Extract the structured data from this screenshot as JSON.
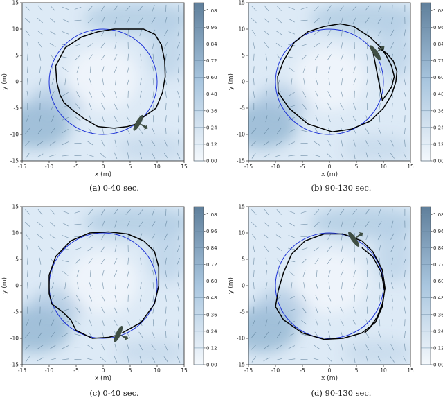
{
  "chart_data": [
    {
      "type": "line",
      "caption": "(a) 0-40 sec.",
      "xlabel": "x (m)",
      "ylabel": "y (m)",
      "xlim": [
        -15,
        15
      ],
      "ylim": [
        -15,
        15
      ],
      "xticks": [
        "-15",
        "-10",
        "-5",
        "0",
        "5",
        "10",
        "15"
      ],
      "yticks": [
        "-15",
        "-10",
        "-5",
        "0",
        "5",
        "10",
        "15"
      ],
      "colorbar_ticks": [
        "0.00",
        "0.12",
        "0.24",
        "0.36",
        "0.48",
        "0.60",
        "0.72",
        "0.84",
        "0.96",
        "1.08"
      ],
      "series": [
        {
          "color": "#1a2fd6",
          "circle": {
            "cx": 0,
            "cy": 0,
            "r": 10
          }
        },
        {
          "color": "#000000",
          "x": [
            7.0,
            9.8,
            11.0,
            11.5,
            11.4,
            10.8,
            9.6,
            7.5,
            4.8,
            2.0,
            -1.0,
            -4.0,
            -7.0,
            -8.8,
            -8.6,
            -8.0,
            -7.2,
            -5.5,
            -3.5,
            -1.0,
            2.0,
            4.5,
            6.2
          ],
          "y": [
            -7.0,
            -5.0,
            -2.0,
            1.0,
            4.0,
            7.0,
            9.0,
            10.0,
            10.0,
            10.0,
            9.5,
            8.5,
            6.5,
            3.0,
            0.0,
            -2.5,
            -4.0,
            -5.5,
            -7.0,
            -8.5,
            -8.8,
            -8.5,
            -8.0
          ]
        }
      ],
      "aircraft": {
        "x": 6.5,
        "y": -7.8,
        "heading_deg": 30
      }
    },
    {
      "type": "line",
      "caption": "(b) 90-130 sec.",
      "xlabel": "x (m)",
      "ylabel": "y (m)",
      "xlim": [
        -15,
        15
      ],
      "ylim": [
        -15,
        15
      ],
      "xticks": [
        "-15",
        "-10",
        "-5",
        "0",
        "5",
        "10",
        "15"
      ],
      "yticks": [
        "-15",
        "-10",
        "-5",
        "0",
        "5",
        "10",
        "15"
      ],
      "colorbar_ticks": [
        "0.00",
        "0.12",
        "0.24",
        "0.36",
        "0.48",
        "0.60",
        "0.72",
        "0.84",
        "0.96",
        "1.08"
      ],
      "series": [
        {
          "color": "#1a2fd6",
          "circle": {
            "cx": 0,
            "cy": 0,
            "r": 10
          }
        },
        {
          "color": "#000000",
          "x": [
            9.0,
            10.5,
            11.8,
            12.5,
            12.3,
            11.5,
            10.0,
            7.5,
            4.0,
            0.5,
            -4.0,
            -7.5,
            -9.5,
            -9.6,
            -8.5,
            -6.5,
            -4.0,
            -1.0,
            2.0,
            4.5,
            7.5,
            9.5,
            10.5,
            11.5,
            12.0,
            11.5,
            10.5,
            9.8,
            8.0
          ],
          "y": [
            6.5,
            5.5,
            4.0,
            2.0,
            0.0,
            -2.5,
            -5.0,
            -7.5,
            -9.0,
            -9.5,
            -8.0,
            -5.0,
            -2.0,
            1.0,
            4.0,
            7.5,
            9.5,
            10.5,
            11.0,
            10.5,
            8.5,
            6.5,
            5.0,
            3.0,
            1.0,
            -1.0,
            -2.5,
            -3.5,
            6.0
          ]
        }
      ],
      "aircraft": {
        "x": 8.5,
        "y": 5.5,
        "heading_deg": -35
      }
    },
    {
      "type": "line",
      "caption": "(c) 0-40 sec.",
      "xlabel": "x (m)",
      "ylabel": "y (m)",
      "xlim": [
        -15,
        15
      ],
      "ylim": [
        -15,
        15
      ],
      "xticks": [
        "-15",
        "-10",
        "-5",
        "0",
        "5",
        "10",
        "15"
      ],
      "yticks": [
        "-15",
        "-10",
        "-5",
        "0",
        "5",
        "10",
        "15"
      ],
      "colorbar_ticks": [
        "0.00",
        "0.12",
        "0.24",
        "0.36",
        "0.48",
        "0.60",
        "0.72",
        "0.84",
        "0.96",
        "1.08"
      ],
      "series": [
        {
          "color": "#1a2fd6",
          "circle": {
            "cx": 0,
            "cy": 0,
            "r": 10
          }
        },
        {
          "color": "#000000",
          "x": [
            3.5,
            7.0,
            9.5,
            10.3,
            10.3,
            9.5,
            7.5,
            4.5,
            1.0,
            -2.5,
            -6.0,
            -8.8,
            -10.0,
            -10.0,
            -9.5,
            -7.5,
            -6.0,
            -5.0,
            -2.0,
            1.0,
            3.0
          ],
          "y": [
            -9.0,
            -7.0,
            -3.5,
            0.0,
            3.5,
            6.5,
            8.5,
            9.8,
            10.2,
            10.0,
            8.5,
            5.5,
            2.0,
            -1.5,
            -3.5,
            -5.0,
            -6.5,
            -8.5,
            -10.0,
            -9.8,
            -9.3
          ]
        }
      ],
      "aircraft": {
        "x": 2.8,
        "y": -9.2,
        "heading_deg": 25
      }
    },
    {
      "type": "line",
      "caption": "(d) 90-130 sec.",
      "xlabel": "x (m)",
      "ylabel": "y (m)",
      "xlim": [
        -15,
        15
      ],
      "ylim": [
        -15,
        15
      ],
      "xticks": [
        "-15",
        "-10",
        "-5",
        "0",
        "5",
        "10",
        "15"
      ],
      "yticks": [
        "-15",
        "-10",
        "-5",
        "0",
        "5",
        "10",
        "15"
      ],
      "colorbar_ticks": [
        "0.00",
        "0.12",
        "0.24",
        "0.36",
        "0.48",
        "0.60",
        "0.72",
        "0.84",
        "0.96",
        "1.08"
      ],
      "series": [
        {
          "color": "#1a2fd6",
          "circle": {
            "cx": 0,
            "cy": 0,
            "r": 10
          }
        },
        {
          "color": "#000000",
          "x": [
            6.0,
            8.0,
            9.6,
            10.2,
            9.8,
            8.5,
            6.0,
            2.5,
            -1.0,
            -5.0,
            -8.5,
            -10.0,
            -9.5,
            -8.5,
            -7.0,
            -4.5,
            -1.0,
            2.5,
            6.0,
            8.0,
            9.8,
            10.3,
            9.8,
            8.8,
            7.5,
            6.5
          ],
          "y": [
            7.2,
            5.5,
            2.5,
            -1.0,
            -4.0,
            -7.0,
            -9.0,
            -10.0,
            -10.2,
            -9.0,
            -6.5,
            -4.0,
            -1.0,
            2.5,
            6.0,
            8.5,
            9.8,
            9.8,
            8.5,
            6.5,
            3.0,
            -0.5,
            -3.5,
            -6.0,
            -8.0,
            -9.0
          ]
        }
      ],
      "aircraft": {
        "x": 4.5,
        "y": 8.8,
        "heading_deg": -35
      }
    }
  ]
}
